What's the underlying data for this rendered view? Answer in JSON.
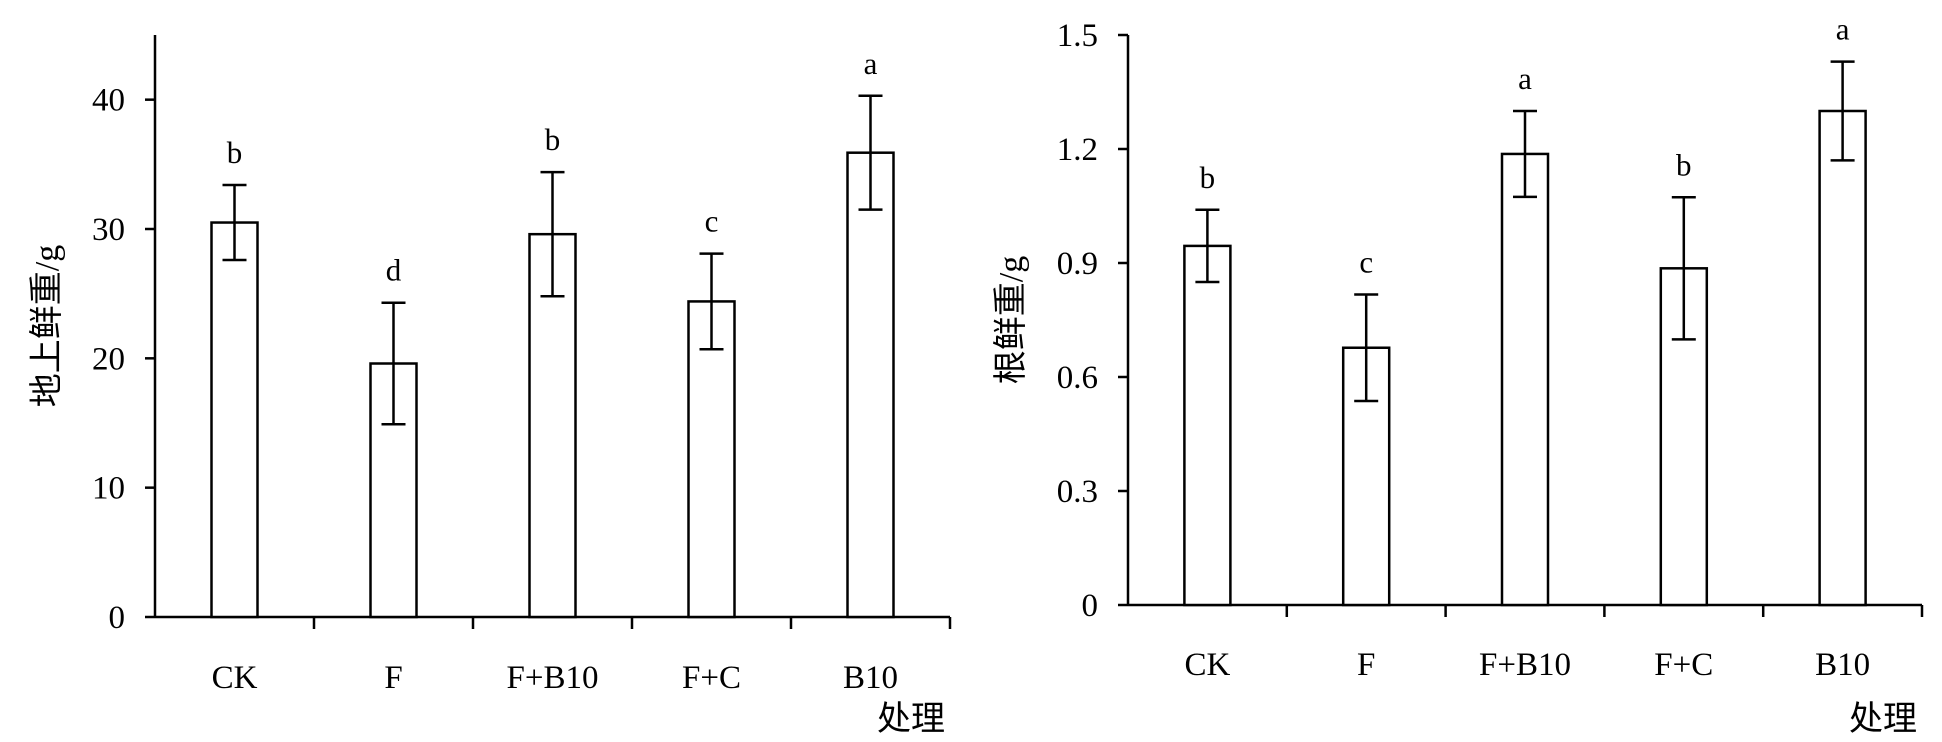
{
  "chart_data": [
    {
      "type": "bar",
      "title": "",
      "xlabel": "处理",
      "ylabel": "地上鲜重/g",
      "ylim": [
        0,
        45
      ],
      "yticks": [
        "0",
        "10",
        "20",
        "30",
        "40"
      ],
      "categories": [
        "CK",
        "F",
        "F+B10",
        "F+C",
        "B10"
      ],
      "values": [
        30.5,
        19.6,
        29.6,
        24.4,
        35.9
      ],
      "errors": [
        2.9,
        4.7,
        4.8,
        3.7,
        4.4
      ],
      "significance": [
        "b",
        "d",
        "b",
        "c",
        "a"
      ],
      "grid": false,
      "legend": "none",
      "bar_fill": "#ffffff",
      "bar_stroke": "#000000"
    },
    {
      "type": "bar",
      "title": "",
      "xlabel": "处理",
      "ylabel": "根鲜重/g",
      "ylim": [
        0,
        1.5
      ],
      "yticks": [
        "0",
        "0.3",
        "0.6",
        "0.9",
        "1.2",
        "1.5"
      ],
      "categories": [
        "CK",
        "F",
        "F+B10",
        "F+C",
        "B10"
      ],
      "values": [
        0.945,
        0.677,
        1.187,
        0.886,
        1.3
      ],
      "errors": [
        0.095,
        0.14,
        0.113,
        0.187,
        0.13
      ],
      "significance": [
        "b",
        "c",
        "a",
        "b",
        "a"
      ],
      "grid": false,
      "legend": "none",
      "bar_fill": "#ffffff",
      "bar_stroke": "#000000"
    }
  ]
}
